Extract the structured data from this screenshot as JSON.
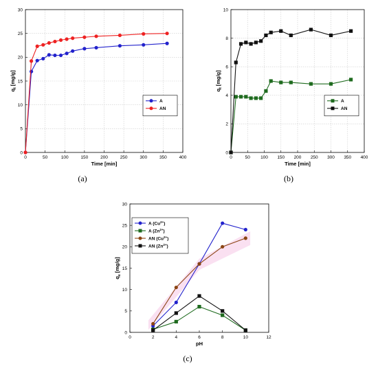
{
  "colors": {
    "A_blue": "#2222cc",
    "AN_red": "#ee2222",
    "A_green": "#1f6b1f",
    "AN_black": "#111111",
    "AN_brown": "#8b4513",
    "grid": "#cccccc",
    "highlight": "#f6c6e6"
  },
  "chart_data": [
    {
      "panel_label": "(a)",
      "type": "line",
      "xlabel": "Time [min]",
      "ylabel": "q",
      "ylabel_sub": "t",
      "ylabel_unit": " [mg/g]",
      "xlim": [
        0,
        400
      ],
      "ylim": [
        0,
        30
      ],
      "xticks": [
        0,
        50,
        100,
        150,
        200,
        250,
        300,
        350,
        400
      ],
      "yticks": [
        0,
        5,
        10,
        15,
        20,
        25,
        30
      ],
      "grid": true,
      "legend_position": "center-right",
      "series": [
        {
          "name": "A",
          "color": "#2222cc",
          "marker": "circle",
          "x": [
            0,
            15,
            30,
            45,
            60,
            75,
            90,
            105,
            120,
            150,
            180,
            240,
            300,
            360
          ],
          "y": [
            0,
            17,
            19.3,
            19.7,
            20.5,
            20.4,
            20.4,
            20.8,
            21.3,
            21.8,
            22.0,
            22.4,
            22.6,
            22.9
          ]
        },
        {
          "name": "AN",
          "color": "#ee2222",
          "marker": "circle",
          "x": [
            0,
            15,
            30,
            45,
            60,
            75,
            90,
            105,
            120,
            150,
            180,
            240,
            300,
            360
          ],
          "y": [
            0,
            19.2,
            22.3,
            22.6,
            23.0,
            23.3,
            23.6,
            23.8,
            24.0,
            24.2,
            24.4,
            24.6,
            24.9,
            25.0
          ]
        }
      ]
    },
    {
      "panel_label": "(b)",
      "type": "line",
      "xlabel": "Time [min]",
      "ylabel": "q",
      "ylabel_sub": "t",
      "ylabel_unit": " [mg/g]",
      "xlim": [
        0,
        400
      ],
      "ylim": [
        0,
        10
      ],
      "xticks": [
        0,
        50,
        100,
        150,
        200,
        250,
        300,
        350,
        400
      ],
      "yticks": [
        0,
        2,
        4,
        6,
        8,
        10
      ],
      "grid": true,
      "legend_position": "center-right",
      "series": [
        {
          "name": "A",
          "color": "#1f6b1f",
          "marker": "square",
          "x": [
            0,
            15,
            30,
            45,
            60,
            75,
            90,
            105,
            120,
            150,
            180,
            240,
            300,
            360
          ],
          "y": [
            0,
            3.9,
            3.9,
            3.9,
            3.8,
            3.8,
            3.8,
            4.3,
            5.0,
            4.9,
            4.9,
            4.8,
            4.8,
            5.1
          ]
        },
        {
          "name": "AN",
          "color": "#111111",
          "marker": "square",
          "x": [
            0,
            15,
            30,
            45,
            60,
            75,
            90,
            105,
            120,
            150,
            180,
            240,
            300,
            360
          ],
          "y": [
            0,
            6.3,
            7.6,
            7.7,
            7.6,
            7.7,
            7.8,
            8.2,
            8.4,
            8.5,
            8.2,
            8.6,
            8.2,
            8.5
          ]
        }
      ]
    },
    {
      "panel_label": "(c)",
      "type": "line",
      "xlabel": "pH",
      "ylabel": "q",
      "ylabel_sub": "e",
      "ylabel_unit": " [mg/g]",
      "xlim": [
        0,
        12
      ],
      "ylim": [
        0,
        30
      ],
      "xticks": [
        0,
        2,
        4,
        6,
        8,
        10,
        12
      ],
      "yticks": [
        0,
        5,
        10,
        15,
        20,
        25,
        30
      ],
      "grid": false,
      "legend_position": "top-left",
      "series": [
        {
          "name": "A (Cu",
          "sup": "2+",
          "close": ")",
          "color": "#2222cc",
          "marker": "circle",
          "x": [
            2,
            4,
            6,
            8,
            10
          ],
          "y": [
            1.5,
            7,
            16,
            25.5,
            24
          ]
        },
        {
          "name": "A (Zn",
          "sup": "2+",
          "close": ")",
          "color": "#1f6b1f",
          "marker": "square",
          "x": [
            2,
            4,
            6,
            8,
            10
          ],
          "y": [
            0.7,
            2.5,
            6,
            4,
            0.5
          ]
        },
        {
          "name": "AN (Cu",
          "sup": "2+",
          "close": ")",
          "color": "#8b4513",
          "marker": "circle",
          "x": [
            2,
            4,
            6,
            8,
            10
          ],
          "y": [
            2,
            10.5,
            16,
            20,
            22
          ]
        },
        {
          "name": "AN (Zn",
          "sup": "2+",
          "close": ")",
          "color": "#111111",
          "marker": "square",
          "x": [
            2,
            4,
            6,
            8,
            10
          ],
          "y": [
            0.5,
            4.5,
            8.5,
            5,
            0.5
          ]
        }
      ]
    }
  ]
}
